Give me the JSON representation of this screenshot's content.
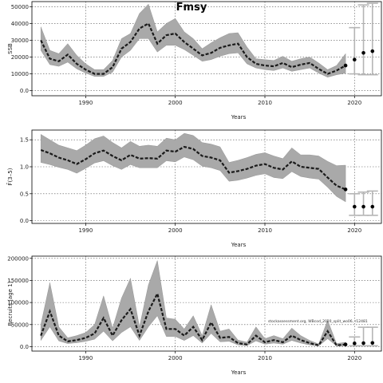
{
  "title": "Fmsy",
  "footnote": "stockassessment.org, WBcod_2020_split_wo06, r12481",
  "chart_data": [
    {
      "type": "line",
      "panel": "SSB",
      "ylabel": "SSB",
      "xlabel": "Years",
      "xlim": [
        1984,
        2023
      ],
      "ylim": [
        -3000,
        53000
      ],
      "xticks": [
        1990,
        2000,
        2010,
        2020
      ],
      "yticks": [
        0,
        10000,
        20000,
        30000,
        40000,
        50000
      ],
      "grid": true,
      "years": [
        1985,
        1986,
        1987,
        1988,
        1989,
        1990,
        1991,
        1992,
        1993,
        1994,
        1995,
        1996,
        1997,
        1998,
        1999,
        2000,
        2001,
        2002,
        2003,
        2004,
        2005,
        2006,
        2007,
        2008,
        2009,
        2010,
        2011,
        2012,
        2013,
        2014,
        2015,
        2016,
        2017,
        2018,
        2019
      ],
      "estimate": [
        30000,
        19000,
        17500,
        21500,
        16000,
        12500,
        10000,
        10000,
        14000,
        25000,
        29000,
        37000,
        40000,
        28000,
        33000,
        34000,
        29000,
        25000,
        21000,
        22500,
        25500,
        27000,
        28000,
        20000,
        16000,
        15000,
        14500,
        16500,
        14000,
        15500,
        16500,
        13000,
        10000,
        12000,
        15000
      ],
      "upper": [
        38000,
        24000,
        22000,
        28000,
        21000,
        16000,
        12500,
        12500,
        18000,
        31000,
        34000,
        46000,
        51500,
        35000,
        40000,
        43000,
        35000,
        31000,
        25000,
        28500,
        31500,
        34000,
        34500,
        26000,
        19000,
        18500,
        18000,
        20500,
        17500,
        19000,
        20000,
        16500,
        12500,
        15000,
        22000
      ],
      "lower": [
        24000,
        15500,
        14500,
        17000,
        13000,
        10500,
        8500,
        8500,
        11000,
        20000,
        24000,
        31000,
        31000,
        23000,
        27000,
        27000,
        24500,
        21000,
        17500,
        18500,
        20500,
        22000,
        22500,
        16000,
        13500,
        12500,
        12000,
        13500,
        11500,
        12500,
        13500,
        10500,
        8000,
        9500,
        10500
      ],
      "forecast": {
        "x": [
          2019,
          2020,
          2021,
          2022
        ],
        "values": [
          15000,
          18500,
          22500,
          23500
        ],
        "upper": [
          22500,
          37500,
          51000,
          52000
        ],
        "lower": [
          10000,
          10000,
          9500,
          9500
        ]
      }
    },
    {
      "type": "line",
      "panel": "Fbar",
      "ylabel": "F̄(3–5)",
      "xlabel": "Years",
      "xlim": [
        1984,
        2023
      ],
      "ylim": [
        -0.05,
        1.68
      ],
      "xticks": [
        1990,
        2000,
        2010,
        2020
      ],
      "yticks": [
        0.0,
        0.5,
        1.0,
        1.5
      ],
      "grid": true,
      "years": [
        1985,
        1986,
        1987,
        1988,
        1989,
        1990,
        1991,
        1992,
        1993,
        1994,
        1995,
        1996,
        1997,
        1998,
        1999,
        2000,
        2001,
        2002,
        2003,
        2004,
        2005,
        2006,
        2007,
        2008,
        2009,
        2010,
        2011,
        2012,
        2013,
        2014,
        2015,
        2016,
        2017,
        2018,
        2019
      ],
      "estimate": [
        1.31,
        1.25,
        1.17,
        1.12,
        1.05,
        1.14,
        1.25,
        1.3,
        1.2,
        1.12,
        1.22,
        1.15,
        1.16,
        1.15,
        1.3,
        1.28,
        1.37,
        1.33,
        1.2,
        1.17,
        1.12,
        0.89,
        0.92,
        0.96,
        1.02,
        1.05,
        0.98,
        0.95,
        1.1,
        1.0,
        0.98,
        0.96,
        0.8,
        0.65,
        0.58
      ],
      "upper": [
        1.6,
        1.5,
        1.4,
        1.35,
        1.3,
        1.4,
        1.52,
        1.57,
        1.45,
        1.35,
        1.47,
        1.38,
        1.4,
        1.38,
        1.53,
        1.5,
        1.62,
        1.58,
        1.45,
        1.42,
        1.37,
        1.08,
        1.12,
        1.17,
        1.23,
        1.26,
        1.2,
        1.15,
        1.35,
        1.22,
        1.22,
        1.2,
        1.1,
        1.02,
        1.03
      ],
      "lower": [
        1.08,
        1.04,
        0.99,
        0.95,
        0.88,
        0.97,
        1.07,
        1.11,
        1.02,
        0.95,
        1.04,
        0.98,
        0.98,
        0.98,
        1.11,
        1.09,
        1.18,
        1.13,
        1.01,
        0.98,
        0.93,
        0.73,
        0.75,
        0.79,
        0.84,
        0.87,
        0.8,
        0.78,
        0.91,
        0.82,
        0.79,
        0.77,
        0.62,
        0.45,
        0.35
      ],
      "forecast": {
        "x": [
          2019,
          2020,
          2021,
          2022
        ],
        "values": [
          0.58,
          0.26,
          0.26,
          0.26
        ],
        "upper": [
          1.03,
          0.5,
          0.53,
          0.55
        ],
        "lower": [
          0.35,
          0.1,
          0.1,
          0.1
        ]
      }
    },
    {
      "type": "line",
      "panel": "Recruitment",
      "ylabel": "Recruits (age 1)",
      "xlabel": "Years",
      "xlim": [
        1984,
        2023
      ],
      "ylim": [
        -10000,
        205000
      ],
      "xticks": [
        1990,
        2000,
        2010,
        2020
      ],
      "yticks": [
        0,
        50000,
        100000,
        150000,
        200000
      ],
      "grid": true,
      "years": [
        1985,
        1986,
        1987,
        1988,
        1989,
        1990,
        1991,
        1992,
        1993,
        1994,
        1995,
        1996,
        1997,
        1998,
        1999,
        2000,
        2001,
        2002,
        2003,
        2004,
        2005,
        2006,
        2007,
        2008,
        2009,
        2010,
        2011,
        2012,
        2013,
        2014,
        2015,
        2016,
        2017,
        2018,
        2019
      ],
      "estimate": [
        25000,
        80000,
        25000,
        12000,
        15000,
        20000,
        30000,
        65000,
        25000,
        60000,
        85000,
        25000,
        80000,
        120000,
        40000,
        40000,
        25000,
        45000,
        15000,
        55000,
        20000,
        22000,
        8000,
        5000,
        25000,
        10000,
        15000,
        10000,
        25000,
        15000,
        8000,
        3000,
        35000,
        3000,
        5000
      ],
      "upper": [
        50000,
        145000,
        45000,
        20000,
        25000,
        32000,
        50000,
        115000,
        42000,
        110000,
        155000,
        45000,
        140000,
        195000,
        65000,
        62000,
        40000,
        70000,
        25000,
        95000,
        35000,
        40000,
        15000,
        10000,
        45000,
        18000,
        25000,
        18000,
        42000,
        25000,
        14000,
        6000,
        60000,
        7000,
        10000
      ],
      "lower": [
        14000,
        45000,
        13000,
        7000,
        9000,
        12000,
        17000,
        35000,
        13000,
        32000,
        45000,
        14000,
        45000,
        70000,
        23000,
        23000,
        14000,
        25000,
        8000,
        30000,
        11000,
        12000,
        4000,
        2500,
        13000,
        5500,
        8000,
        5500,
        14000,
        8000,
        4000,
        1500,
        18000,
        1500,
        2000
      ],
      "forecast": {
        "x": [
          2019,
          2020,
          2021,
          2022
        ],
        "values": [
          5000,
          7500,
          8000,
          8500
        ],
        "upper": [
          10000,
          22000,
          44000,
          44000
        ],
        "lower": [
          2000,
          2000,
          2000,
          2000
        ]
      }
    }
  ]
}
